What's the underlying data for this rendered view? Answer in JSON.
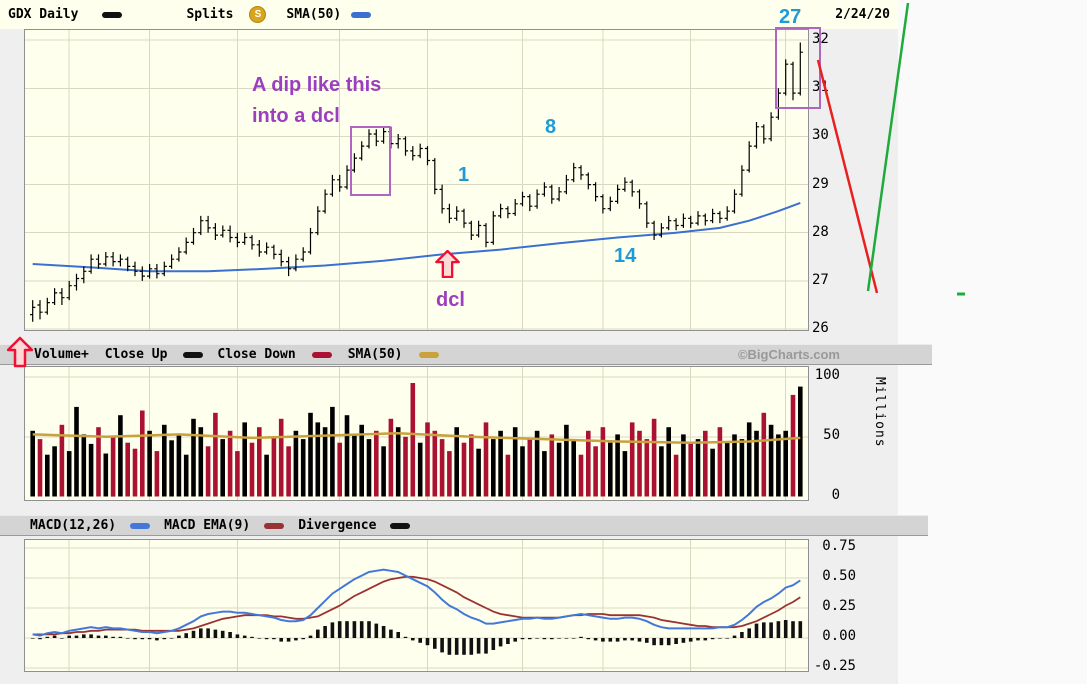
{
  "header": {
    "title": "GDX Daily",
    "splits": "Splits",
    "splits_badge": "S",
    "sma": "SMA(50)",
    "date": "2/24/20"
  },
  "volume_panel": {
    "label": "Volume+",
    "close_up": "Close Up",
    "close_down": "Close Down",
    "sma": "SMA(50)",
    "watermark": "©BigCharts.com",
    "axis_label": "Millions"
  },
  "macd_panel": {
    "macd": "MACD(12,26)",
    "ema": "MACD EMA(9)",
    "divergence": "Divergence"
  },
  "annotations": {
    "dip_line1": "A dip like this",
    "dip_line2": "into a dcl",
    "dcl": "dcl",
    "day1": "1",
    "day8": "8",
    "day14": "14",
    "day27": "27"
  },
  "colors": {
    "plot_bg": "#ffffee",
    "grid": "#d9d9c2",
    "price_bar": "#000000",
    "sma50_price": "#3b6fd0",
    "volume_up": "#000000",
    "volume_down": "#aa1133",
    "sma50_volume": "#c9a13d",
    "macd_line": "#4478d8",
    "macd_signal": "#993333",
    "divergence_bar": "#111111",
    "annotation_purple": "#9b3fc0",
    "annotation_blue": "#1e9bd7",
    "annotation_red": "#ee1133",
    "trend_green": "#1faa3c",
    "trend_red": "#e82020"
  },
  "axes": {
    "price_ticks": [
      {
        "label": "32",
        "value": 32
      },
      {
        "label": "31",
        "value": 31
      },
      {
        "label": "30",
        "value": 30
      },
      {
        "label": "29",
        "value": 29
      },
      {
        "label": "28",
        "value": 28
      },
      {
        "label": "27",
        "value": 27
      },
      {
        "label": "26",
        "value": 26
      }
    ],
    "volume_ticks": [
      {
        "label": "100",
        "value": 100
      },
      {
        "label": "50",
        "value": 50
      },
      {
        "label": "0",
        "value": 0
      }
    ],
    "macd_ticks": [
      {
        "label": "0.75",
        "value": 0.75
      },
      {
        "label": "0.50",
        "value": 0.5
      },
      {
        "label": "0.25",
        "value": 0.25
      },
      {
        "label": "0.00",
        "value": 0
      },
      {
        "label": "-0.25",
        "value": -0.25
      }
    ]
  },
  "chart_data": [
    {
      "type": "ohlc",
      "title": "GDX Daily price with SMA(50)",
      "ylim": [
        25.98,
        32.21
      ],
      "yticks": [
        26,
        27,
        28,
        29,
        30,
        31,
        32
      ],
      "grid_bar_indices": [
        5,
        16,
        28,
        42,
        54,
        67,
        78,
        90,
        103
      ],
      "bars": [
        [
          26.3,
          26.6,
          26.15,
          26.45
        ],
        [
          26.5,
          26.6,
          26.2,
          26.35
        ],
        [
          26.35,
          26.65,
          26.3,
          26.55
        ],
        [
          26.55,
          26.85,
          26.5,
          26.75
        ],
        [
          26.75,
          26.85,
          26.5,
          26.65
        ],
        [
          26.65,
          27.0,
          26.6,
          26.9
        ],
        [
          26.9,
          27.15,
          26.8,
          27.05
        ],
        [
          27.05,
          27.3,
          26.95,
          27.2
        ],
        [
          27.2,
          27.55,
          27.15,
          27.45
        ],
        [
          27.45,
          27.55,
          27.25,
          27.35
        ],
        [
          27.35,
          27.6,
          27.3,
          27.5
        ],
        [
          27.5,
          27.6,
          27.3,
          27.4
        ],
        [
          27.4,
          27.55,
          27.3,
          27.45
        ],
        [
          27.45,
          27.5,
          27.2,
          27.3
        ],
        [
          27.3,
          27.4,
          27.1,
          27.2
        ],
        [
          27.2,
          27.3,
          27.0,
          27.1
        ],
        [
          27.1,
          27.35,
          27.05,
          27.25
        ],
        [
          27.25,
          27.35,
          27.05,
          27.15
        ],
        [
          27.15,
          27.4,
          27.1,
          27.3
        ],
        [
          27.3,
          27.55,
          27.25,
          27.45
        ],
        [
          27.45,
          27.7,
          27.4,
          27.6
        ],
        [
          27.6,
          27.9,
          27.55,
          27.8
        ],
        [
          27.8,
          28.1,
          27.75,
          28.0
        ],
        [
          28.0,
          28.35,
          27.95,
          28.25
        ],
        [
          28.25,
          28.35,
          28.0,
          28.1
        ],
        [
          28.1,
          28.2,
          27.85,
          27.95
        ],
        [
          27.95,
          28.15,
          27.9,
          28.05
        ],
        [
          28.05,
          28.15,
          27.8,
          27.9
        ],
        [
          27.9,
          28.0,
          27.7,
          27.8
        ],
        [
          27.8,
          28.0,
          27.75,
          27.9
        ],
        [
          27.9,
          27.95,
          27.65,
          27.75
        ],
        [
          27.75,
          27.85,
          27.5,
          27.6
        ],
        [
          27.6,
          27.8,
          27.55,
          27.7
        ],
        [
          27.7,
          27.75,
          27.45,
          27.55
        ],
        [
          27.55,
          27.65,
          27.3,
          27.4
        ],
        [
          27.4,
          27.5,
          27.1,
          27.25
        ],
        [
          27.25,
          27.55,
          27.2,
          27.45
        ],
        [
          27.45,
          27.7,
          27.4,
          27.6
        ],
        [
          27.6,
          28.1,
          27.55,
          28.0
        ],
        [
          28.0,
          28.55,
          27.95,
          28.45
        ],
        [
          28.45,
          28.9,
          28.4,
          28.8
        ],
        [
          28.8,
          29.2,
          28.75,
          29.1
        ],
        [
          29.1,
          29.2,
          28.85,
          28.95
        ],
        [
          28.95,
          29.4,
          28.9,
          29.3
        ],
        [
          29.3,
          29.65,
          29.25,
          29.55
        ],
        [
          29.55,
          29.9,
          29.5,
          29.8
        ],
        [
          29.8,
          30.15,
          29.75,
          30.05
        ],
        [
          30.05,
          30.15,
          29.8,
          29.9
        ],
        [
          29.9,
          30.2,
          29.85,
          30.1
        ],
        [
          30.1,
          30.2,
          29.75,
          29.85
        ],
        [
          29.85,
          30.05,
          29.75,
          29.95
        ],
        [
          29.95,
          30.0,
          29.6,
          29.7
        ],
        [
          29.7,
          29.8,
          29.5,
          29.6
        ],
        [
          29.6,
          29.85,
          29.55,
          29.75
        ],
        [
          29.75,
          29.8,
          29.4,
          29.5
        ],
        [
          29.5,
          29.55,
          28.8,
          28.9
        ],
        [
          28.9,
          29.0,
          28.4,
          28.5
        ],
        [
          28.5,
          28.6,
          28.2,
          28.3
        ],
        [
          28.3,
          28.55,
          28.25,
          28.45
        ],
        [
          28.45,
          28.5,
          28.1,
          28.2
        ],
        [
          28.2,
          28.25,
          27.85,
          27.95
        ],
        [
          27.95,
          28.25,
          27.9,
          28.15
        ],
        [
          28.15,
          28.2,
          27.7,
          27.8
        ],
        [
          27.8,
          28.45,
          27.75,
          28.35
        ],
        [
          28.35,
          28.6,
          28.3,
          28.5
        ],
        [
          28.5,
          28.55,
          28.3,
          28.4
        ],
        [
          28.4,
          28.7,
          28.35,
          28.6
        ],
        [
          28.6,
          28.85,
          28.55,
          28.75
        ],
        [
          28.75,
          28.8,
          28.45,
          28.55
        ],
        [
          28.55,
          28.9,
          28.5,
          28.8
        ],
        [
          28.8,
          29.05,
          28.75,
          28.95
        ],
        [
          28.95,
          29.0,
          28.6,
          28.7
        ],
        [
          28.7,
          28.95,
          28.65,
          28.85
        ],
        [
          28.85,
          29.2,
          28.8,
          29.1
        ],
        [
          29.1,
          29.45,
          29.05,
          29.35
        ],
        [
          29.35,
          29.4,
          29.1,
          29.2
        ],
        [
          29.2,
          29.25,
          28.9,
          29.0
        ],
        [
          29.0,
          29.05,
          28.65,
          28.75
        ],
        [
          28.75,
          28.8,
          28.4,
          28.5
        ],
        [
          28.5,
          28.75,
          28.45,
          28.65
        ],
        [
          28.65,
          29.0,
          28.6,
          28.9
        ],
        [
          28.9,
          29.15,
          28.85,
          29.05
        ],
        [
          29.05,
          29.1,
          28.75,
          28.85
        ],
        [
          28.85,
          28.9,
          28.5,
          28.6
        ],
        [
          28.6,
          28.65,
          28.1,
          28.2
        ],
        [
          28.2,
          28.25,
          27.85,
          27.95
        ],
        [
          27.95,
          28.2,
          27.9,
          28.1
        ],
        [
          28.1,
          28.35,
          28.05,
          28.25
        ],
        [
          28.25,
          28.3,
          28.05,
          28.15
        ],
        [
          28.15,
          28.4,
          28.1,
          28.3
        ],
        [
          28.3,
          28.35,
          28.1,
          28.2
        ],
        [
          28.2,
          28.45,
          28.15,
          28.35
        ],
        [
          28.35,
          28.4,
          28.15,
          28.25
        ],
        [
          28.25,
          28.5,
          28.2,
          28.4
        ],
        [
          28.4,
          28.45,
          28.2,
          28.3
        ],
        [
          28.3,
          28.55,
          28.25,
          28.45
        ],
        [
          28.45,
          28.9,
          28.4,
          28.8
        ],
        [
          28.8,
          29.4,
          28.75,
          29.3
        ],
        [
          29.3,
          29.9,
          29.25,
          29.8
        ],
        [
          29.8,
          30.3,
          29.75,
          30.2
        ],
        [
          30.2,
          30.25,
          29.85,
          29.95
        ],
        [
          29.95,
          30.5,
          29.9,
          30.4
        ],
        [
          30.4,
          31.0,
          30.35,
          30.9
        ],
        [
          30.9,
          31.6,
          30.85,
          31.5
        ],
        [
          31.5,
          31.55,
          30.75,
          30.9
        ],
        [
          30.9,
          31.95,
          30.85,
          31.75
        ]
      ],
      "sma50": [
        [
          0,
          27.35
        ],
        [
          8,
          27.28
        ],
        [
          16,
          27.2
        ],
        [
          24,
          27.2
        ],
        [
          32,
          27.25
        ],
        [
          40,
          27.32
        ],
        [
          48,
          27.42
        ],
        [
          56,
          27.55
        ],
        [
          64,
          27.65
        ],
        [
          72,
          27.78
        ],
        [
          80,
          27.9
        ],
        [
          88,
          28.0
        ],
        [
          94,
          28.1
        ],
        [
          98,
          28.25
        ],
        [
          102,
          28.45
        ],
        [
          105,
          28.62
        ]
      ]
    },
    {
      "type": "bar",
      "title": "Volume (Millions) with SMA(50)",
      "ylabel": "Millions",
      "ylim": [
        0,
        107
      ],
      "yticks": [
        50,
        100
      ],
      "values": [
        55,
        48,
        35,
        42,
        60,
        38,
        75,
        52,
        44,
        58,
        36,
        50,
        68,
        45,
        40,
        72,
        55,
        38,
        60,
        47,
        52,
        35,
        65,
        58,
        42,
        70,
        48,
        55,
        38,
        62,
        45,
        58,
        35,
        50,
        65,
        42,
        55,
        48,
        70,
        62,
        58,
        75,
        45,
        68,
        52,
        60,
        48,
        55,
        42,
        65,
        58,
        50,
        95,
        45,
        62,
        55,
        48,
        38,
        58,
        45,
        52,
        40,
        62,
        48,
        55,
        35,
        58,
        42,
        48,
        55,
        38,
        52,
        45,
        60,
        48,
        35,
        55,
        42,
        58,
        45,
        52,
        38,
        62,
        55,
        48,
        65,
        42,
        58,
        35,
        52,
        45,
        48,
        55,
        40,
        58,
        45,
        52,
        48,
        62,
        55,
        70,
        60,
        52,
        55,
        85,
        92
      ],
      "sma50": [
        [
          0,
          52
        ],
        [
          10,
          50
        ],
        [
          20,
          52
        ],
        [
          30,
          49
        ],
        [
          40,
          51
        ],
        [
          50,
          53
        ],
        [
          60,
          50
        ],
        [
          70,
          48
        ],
        [
          80,
          46
        ],
        [
          90,
          45
        ],
        [
          98,
          46
        ],
        [
          105,
          49
        ]
      ]
    },
    {
      "type": "line",
      "title": "MACD(12,26) with EMA(9) signal and divergence histogram",
      "ylim": [
        -0.33,
        0.82
      ],
      "yticks": [
        -0.25,
        0,
        0.25,
        0.5,
        0.75
      ],
      "macd": [
        0.03,
        0.02,
        0.04,
        0.05,
        0.04,
        0.06,
        0.07,
        0.08,
        0.09,
        0.08,
        0.09,
        0.08,
        0.08,
        0.07,
        0.06,
        0.05,
        0.05,
        0.04,
        0.05,
        0.06,
        0.08,
        0.11,
        0.14,
        0.18,
        0.2,
        0.21,
        0.22,
        0.22,
        0.21,
        0.21,
        0.2,
        0.19,
        0.18,
        0.17,
        0.15,
        0.14,
        0.14,
        0.15,
        0.19,
        0.25,
        0.31,
        0.37,
        0.41,
        0.45,
        0.49,
        0.52,
        0.55,
        0.56,
        0.57,
        0.56,
        0.55,
        0.52,
        0.49,
        0.46,
        0.43,
        0.38,
        0.32,
        0.27,
        0.24,
        0.2,
        0.17,
        0.15,
        0.12,
        0.12,
        0.13,
        0.14,
        0.15,
        0.16,
        0.16,
        0.17,
        0.16,
        0.16,
        0.17,
        0.18,
        0.19,
        0.2,
        0.19,
        0.18,
        0.17,
        0.16,
        0.16,
        0.17,
        0.17,
        0.16,
        0.14,
        0.11,
        0.09,
        0.08,
        0.08,
        0.08,
        0.08,
        0.08,
        0.08,
        0.08,
        0.09,
        0.09,
        0.11,
        0.15,
        0.2,
        0.26,
        0.3,
        0.33,
        0.37,
        0.42,
        0.44,
        0.48
      ],
      "signal": [
        0.03,
        0.03,
        0.03,
        0.03,
        0.04,
        0.04,
        0.05,
        0.05,
        0.06,
        0.06,
        0.07,
        0.07,
        0.07,
        0.07,
        0.07,
        0.06,
        0.06,
        0.06,
        0.06,
        0.06,
        0.06,
        0.07,
        0.08,
        0.1,
        0.12,
        0.14,
        0.16,
        0.17,
        0.18,
        0.19,
        0.19,
        0.19,
        0.19,
        0.18,
        0.18,
        0.17,
        0.16,
        0.16,
        0.17,
        0.18,
        0.21,
        0.24,
        0.27,
        0.31,
        0.35,
        0.38,
        0.41,
        0.44,
        0.47,
        0.49,
        0.5,
        0.51,
        0.51,
        0.5,
        0.49,
        0.47,
        0.44,
        0.41,
        0.38,
        0.34,
        0.31,
        0.28,
        0.25,
        0.22,
        0.2,
        0.19,
        0.18,
        0.17,
        0.17,
        0.17,
        0.17,
        0.17,
        0.17,
        0.18,
        0.19,
        0.19,
        0.2,
        0.2,
        0.2,
        0.19,
        0.19,
        0.19,
        0.19,
        0.19,
        0.18,
        0.17,
        0.15,
        0.14,
        0.13,
        0.12,
        0.11,
        0.1,
        0.1,
        0.09,
        0.09,
        0.09,
        0.09,
        0.1,
        0.12,
        0.14,
        0.17,
        0.2,
        0.23,
        0.27,
        0.3,
        0.34
      ]
    }
  ]
}
